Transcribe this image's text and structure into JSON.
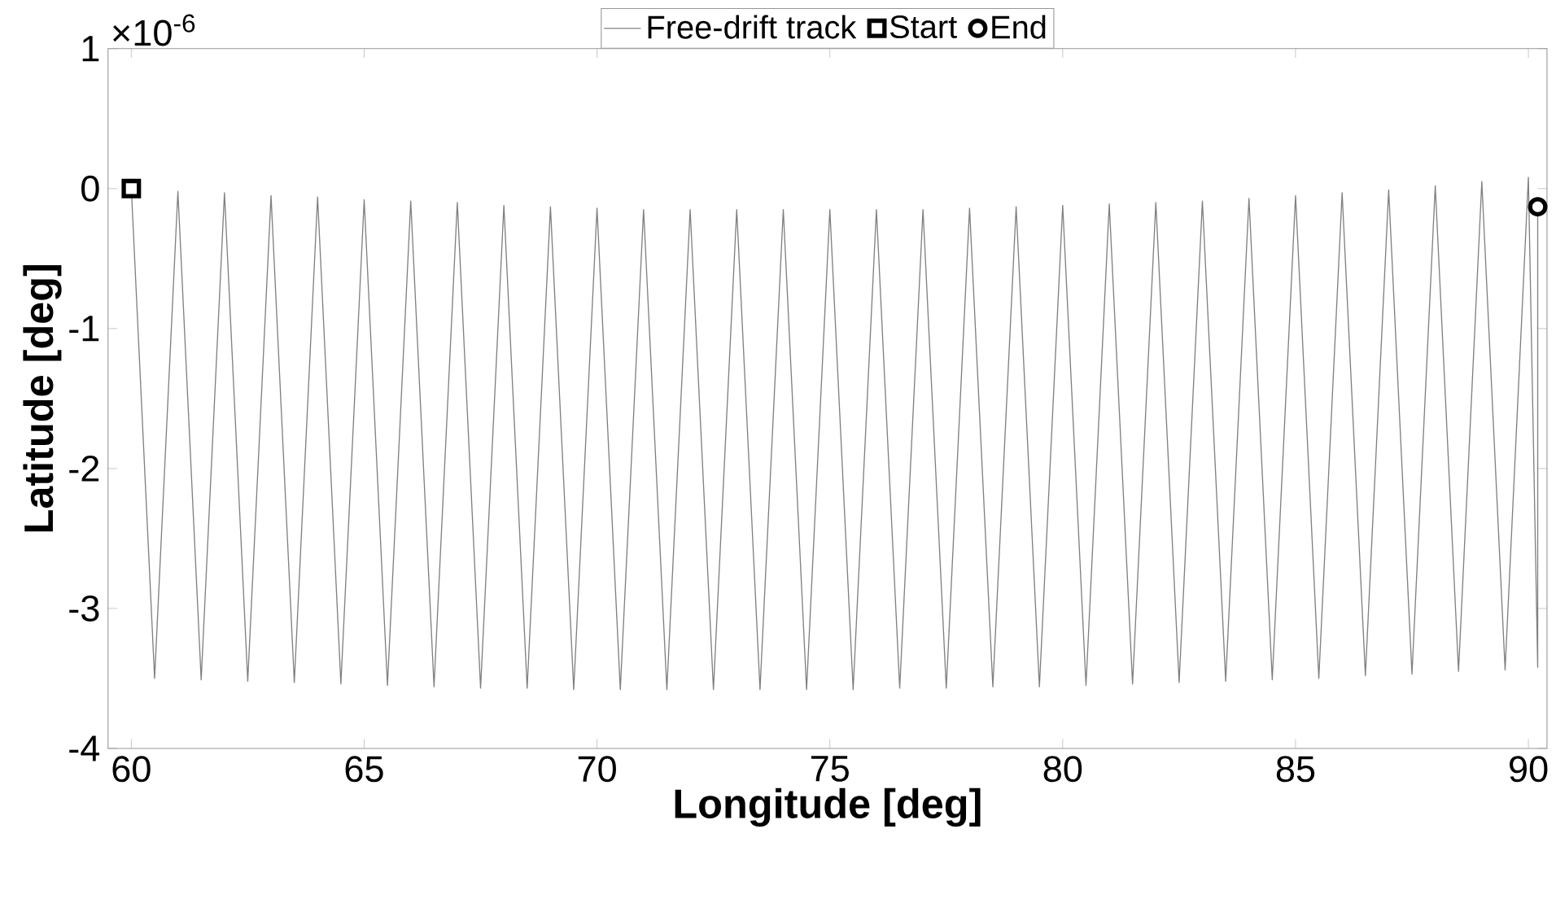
{
  "chart_data": {
    "type": "line",
    "xlabel": "Longitude [deg]",
    "ylabel": "Latitude [deg]",
    "annotations": [
      "×10$^{-6}$"
    ],
    "xlim": [
      59.5,
      90.4
    ],
    "xticks": [
      60,
      65,
      70,
      75,
      80,
      85,
      90
    ],
    "ylim": [
      -4,
      1
    ],
    "yticks": [
      -4,
      -3,
      -2,
      -1,
      0,
      1
    ],
    "legend": "top",
    "series": [
      {
        "name": "Free-drift track",
        "color": "#808080",
        "marker": "none",
        "x": [
          60,
          60.5,
          61,
          61.5,
          62,
          62.5,
          63,
          63.5,
          64,
          64.5,
          65,
          65.5,
          66,
          66.5,
          67,
          67.5,
          68,
          68.5,
          69,
          69.5,
          70,
          70.5,
          71,
          71.5,
          72,
          72.5,
          73,
          73.5,
          74,
          74.5,
          75,
          75.5,
          76,
          76.5,
          77,
          77.5,
          78,
          78.5,
          79,
          79.5,
          80,
          80.5,
          81,
          81.5,
          82,
          82.5,
          83,
          83.5,
          84,
          84.5,
          85,
          85.5,
          86,
          86.5,
          87,
          87.5,
          88,
          88.5,
          89,
          89.5,
          90,
          90.2,
          90.2
        ],
        "values": [
          0,
          -3.5,
          -0.02,
          -3.51,
          -0.03,
          -3.52,
          -0.05,
          -3.53,
          -0.06,
          -3.54,
          -0.08,
          -3.55,
          -0.09,
          -3.56,
          -0.1,
          -3.57,
          -0.12,
          -3.57,
          -0.13,
          -3.58,
          -0.14,
          -3.58,
          -0.15,
          -3.58,
          -0.15,
          -3.58,
          -0.15,
          -3.58,
          -0.15,
          -3.58,
          -0.15,
          -3.58,
          -0.15,
          -3.57,
          -0.15,
          -3.57,
          -0.14,
          -3.56,
          -0.13,
          -3.56,
          -0.12,
          -3.55,
          -0.11,
          -3.54,
          -0.1,
          -3.53,
          -0.09,
          -3.52,
          -0.07,
          -3.51,
          -0.05,
          -3.5,
          -0.03,
          -3.48,
          -0.01,
          -3.47,
          0.02,
          -3.45,
          0.05,
          -3.44,
          0.08,
          -3.42,
          -0.13
        ]
      },
      {
        "name": "Start",
        "type": "scatter",
        "color": "#000000",
        "marker": "square",
        "x": [
          60
        ],
        "values": [
          0
        ]
      },
      {
        "name": "End",
        "type": "scatter",
        "color": "#000000",
        "marker": "circle",
        "x": [
          90.2
        ],
        "values": [
          -0.13
        ]
      }
    ]
  }
}
